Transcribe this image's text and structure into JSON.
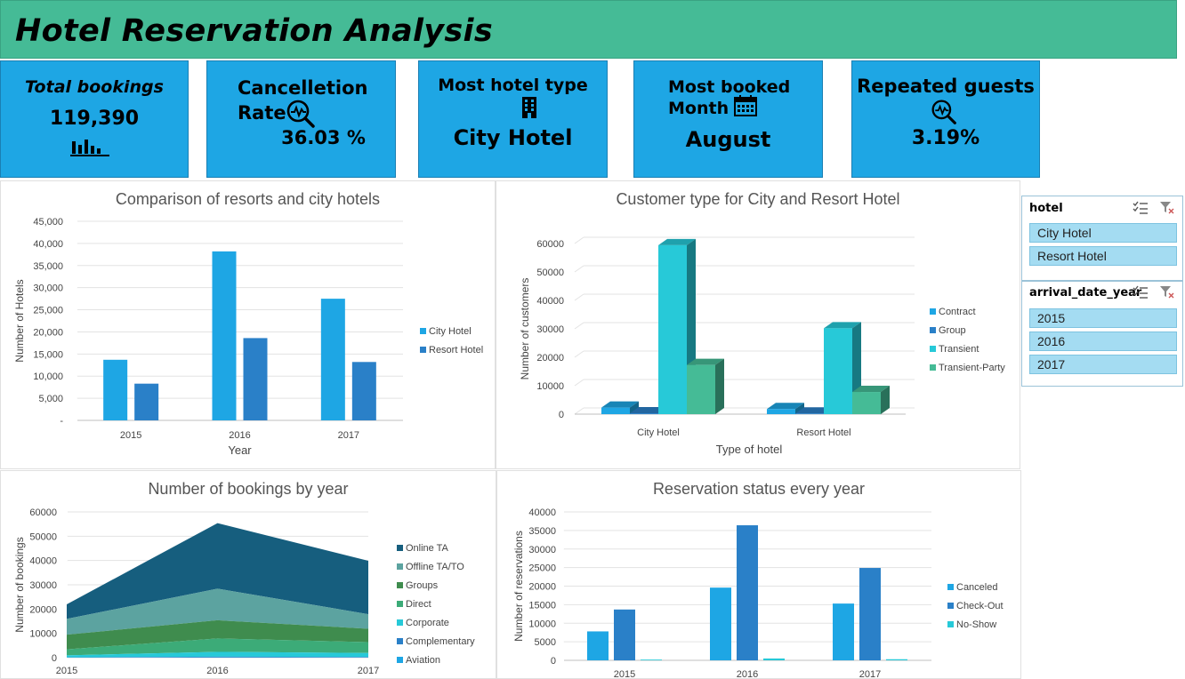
{
  "header": {
    "title": "Hotel Reservation Analysis"
  },
  "kpis": {
    "total_bookings": {
      "label": "Total bookings",
      "value": "119,390",
      "icon": "bar-chart-icon"
    },
    "cancellation": {
      "label_line1": "Cancelletion",
      "label_line2": "Rate",
      "value": "36.03 %",
      "icon": "search-analytics-icon"
    },
    "hotel_type": {
      "label": "Most hotel type",
      "value": "City Hotel",
      "icon": "building-icon"
    },
    "booked_month": {
      "label_line1": "Most booked",
      "label_line2": "Month",
      "value": "August",
      "icon": "calendar-icon"
    },
    "repeated": {
      "label": "Repeated guests",
      "value": "3.19%",
      "icon": "search-analytics-icon"
    }
  },
  "slicers": {
    "hotel": {
      "title": "hotel",
      "items": [
        "City Hotel",
        "Resort Hotel"
      ]
    },
    "year": {
      "title": "arrival_date_year",
      "items": [
        "2015",
        "2016",
        "2017"
      ]
    }
  },
  "colors": {
    "blue_light": "#1ea6e4",
    "blue_mid": "#2a80c8",
    "teal": "#27c9d8",
    "green": "#45bb96",
    "navy": "#165e7e",
    "slate": "#5ca3a0",
    "dark_green": "#3f8c4e",
    "mid_green": "#3cab78"
  },
  "chart_data": [
    {
      "type": "bar",
      "title": "Comparison of resorts and city hotels",
      "xlabel": "Year",
      "ylabel": "Number of Hotels",
      "categories": [
        "2015",
        "2016",
        "2017"
      ],
      "ylim": [
        0,
        45000
      ],
      "yticks": [
        "-",
        "5,000",
        "10,000",
        "15,000",
        "20,000",
        "25,000",
        "30,000",
        "35,000",
        "40,000",
        "45,000"
      ],
      "legend": "right",
      "series": [
        {
          "name": "City Hotel",
          "values": [
            13700,
            38200,
            27500
          ],
          "color": "#1ea6e4"
        },
        {
          "name": "Resort Hotel",
          "values": [
            8300,
            18600,
            13200
          ],
          "color": "#2a80c8"
        }
      ]
    },
    {
      "type": "bar",
      "title": "Customer type for City and Resort Hotel",
      "xlabel": "Type of hotel",
      "ylabel": "Number of customers",
      "categories": [
        "City Hotel",
        "Resort Hotel"
      ],
      "ylim": [
        0,
        60000
      ],
      "yticks": [
        "0",
        "10000",
        "20000",
        "30000",
        "40000",
        "50000",
        "60000"
      ],
      "legend": "right",
      "series": [
        {
          "name": "Contract",
          "values": [
            2300,
            1800
          ],
          "color": "#1ea6e4"
        },
        {
          "name": "Group",
          "values": [
            300,
            250
          ],
          "color": "#2a80c8"
        },
        {
          "name": "Transient",
          "values": [
            59400,
            30200
          ],
          "color": "#27c9d8"
        },
        {
          "name": "Transient-Party",
          "values": [
            17300,
            7800
          ],
          "color": "#45bb96"
        }
      ]
    },
    {
      "type": "area",
      "title": "Number of bookings by year",
      "ylabel": "Number of bookings",
      "categories": [
        "2015",
        "2016",
        "2017"
      ],
      "ylim": [
        0,
        60000
      ],
      "yticks": [
        "0",
        "10000",
        "20000",
        "30000",
        "40000",
        "50000",
        "60000"
      ],
      "legend": "right",
      "series": [
        {
          "name": "Online TA",
          "values": [
            6000,
            27000,
            22000
          ],
          "color": "#165e7e"
        },
        {
          "name": "Offline TA/TO",
          "values": [
            6500,
            13000,
            6000
          ],
          "color": "#5ca3a0"
        },
        {
          "name": "Groups",
          "values": [
            6000,
            7500,
            5500
          ],
          "color": "#3f8c4e"
        },
        {
          "name": "Direct",
          "values": [
            2500,
            5500,
            4500
          ],
          "color": "#3cab78"
        },
        {
          "name": "Corporate",
          "values": [
            800,
            2000,
            1600
          ],
          "color": "#27c9d8"
        },
        {
          "name": "Complementary",
          "values": [
            100,
            300,
            200
          ],
          "color": "#2a80c8"
        },
        {
          "name": "Aviation",
          "values": [
            50,
            100,
            100
          ],
          "color": "#1ea6e4"
        }
      ]
    },
    {
      "type": "bar",
      "title": "Reservation status every year",
      "ylabel": "Number of reservations",
      "categories": [
        "2015",
        "2016",
        "2017"
      ],
      "ylim": [
        0,
        40000
      ],
      "yticks": [
        "0",
        "5000",
        "10000",
        "15000",
        "20000",
        "25000",
        "30000",
        "35000",
        "40000"
      ],
      "legend": "right",
      "series": [
        {
          "name": "Canceled",
          "values": [
            7800,
            19600,
            15300
          ],
          "color": "#1ea6e4"
        },
        {
          "name": "Check-Out",
          "values": [
            13700,
            36400,
            24900
          ],
          "color": "#2a80c8"
        },
        {
          "name": "No-Show",
          "values": [
            200,
            500,
            300
          ],
          "color": "#27c9d8"
        }
      ]
    }
  ]
}
